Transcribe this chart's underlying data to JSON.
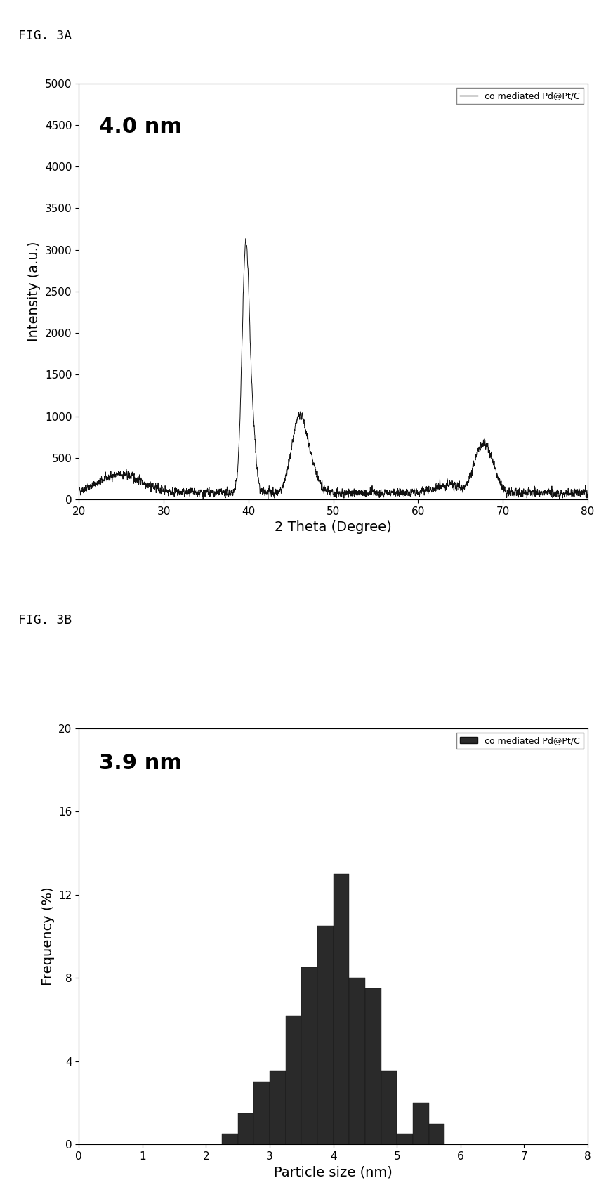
{
  "fig3a": {
    "label": "4.0 nm",
    "legend_label": "co mediated Pd@Pt/C",
    "xlabel": "2 Theta (Degree)",
    "ylabel": "Intensity (a.u.)",
    "xlim": [
      20,
      80
    ],
    "ylim": [
      0,
      5000
    ],
    "yticks": [
      0,
      500,
      1000,
      1500,
      2000,
      2500,
      3000,
      3500,
      4000,
      4500,
      5000
    ],
    "xticks": [
      20,
      30,
      40,
      50,
      60,
      70,
      80
    ],
    "line_color": "#111111",
    "noise_seed": 42
  },
  "fig3b": {
    "label": "3.9 nm",
    "legend_label": "co mediated Pd@Pt/C",
    "xlabel": "Particle size (nm)",
    "ylabel": "Frequency (%)",
    "xlim": [
      0,
      8
    ],
    "ylim": [
      0,
      20
    ],
    "yticks": [
      0,
      4,
      8,
      12,
      16,
      20
    ],
    "xticks": [
      0,
      1,
      2,
      3,
      4,
      5,
      6,
      7,
      8
    ],
    "bar_color": "#2a2a2a",
    "bar_edges": [
      2.0,
      2.25,
      2.5,
      2.75,
      3.0,
      3.25,
      3.5,
      3.75,
      4.0,
      4.25,
      4.5,
      4.75,
      5.0,
      5.25,
      5.5,
      5.75
    ],
    "bar_heights": [
      0.0,
      0.5,
      1.5,
      3.0,
      3.5,
      6.2,
      8.5,
      10.5,
      13.0,
      8.0,
      7.5,
      3.5,
      0.5,
      2.0,
      1.0,
      0.0
    ],
    "bar_width": 0.25
  },
  "fig_label_a": "FIG. 3A",
  "fig_label_b": "FIG. 3B",
  "background_color": "#ffffff",
  "text_color": "#000000",
  "label_fontsize": 22,
  "axis_fontsize": 14,
  "tick_fontsize": 11,
  "legend_fontsize": 9,
  "figlabel_fontsize": 13
}
